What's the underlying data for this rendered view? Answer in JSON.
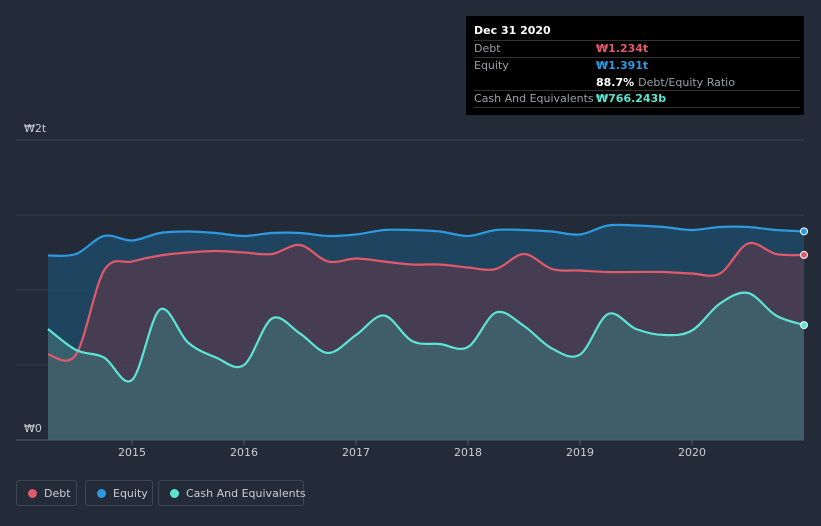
{
  "tooltip": {
    "date": "Dec 31 2020",
    "debt_label": "Debt",
    "debt_value": "₩1.234t",
    "equity_label": "Equity",
    "equity_value": "₩1.391t",
    "ratio_value": "88.7%",
    "ratio_label": "Debt/Equity Ratio",
    "cash_label": "Cash And Equivalents",
    "cash_value": "₩766.243b"
  },
  "legend": {
    "debt": "Debt",
    "equity": "Equity",
    "cash": "Cash And Equivalents"
  },
  "colors": {
    "debt": "#e05a6a",
    "equity": "#2d9ae0",
    "cash": "#5de4d4",
    "background": "#232b38"
  },
  "chart_data": {
    "type": "area",
    "title": "",
    "ylabel": "",
    "currency": "₩",
    "unit": "trillion",
    "y_tick_labels": [
      "₩0",
      "₩2t"
    ],
    "y_ticks": [
      0,
      2
    ],
    "ylim": [
      0,
      2
    ],
    "gridlines_at": [
      0.5,
      1.0,
      1.5,
      1.5
    ],
    "xlim": [
      2014.25,
      2021.0
    ],
    "x_tick_labels": [
      "2015",
      "2016",
      "2017",
      "2018",
      "2019",
      "2020"
    ],
    "x_ticks": [
      2015,
      2016,
      2017,
      2018,
      2019,
      2020
    ],
    "series": [
      {
        "name": "Equity",
        "key": "equity",
        "points": [
          [
            2014.25,
            1.23
          ],
          [
            2014.5,
            1.24
          ],
          [
            2014.75,
            1.36
          ],
          [
            2015.0,
            1.33
          ],
          [
            2015.25,
            1.38
          ],
          [
            2015.5,
            1.39
          ],
          [
            2015.75,
            1.38
          ],
          [
            2016.0,
            1.36
          ],
          [
            2016.25,
            1.38
          ],
          [
            2016.5,
            1.38
          ],
          [
            2016.75,
            1.36
          ],
          [
            2017.0,
            1.37
          ],
          [
            2017.25,
            1.4
          ],
          [
            2017.5,
            1.4
          ],
          [
            2017.75,
            1.39
          ],
          [
            2018.0,
            1.36
          ],
          [
            2018.25,
            1.4
          ],
          [
            2018.5,
            1.4
          ],
          [
            2018.75,
            1.39
          ],
          [
            2019.0,
            1.37
          ],
          [
            2019.25,
            1.43
          ],
          [
            2019.5,
            1.43
          ],
          [
            2019.75,
            1.42
          ],
          [
            2020.0,
            1.4
          ],
          [
            2020.25,
            1.42
          ],
          [
            2020.5,
            1.42
          ],
          [
            2020.75,
            1.4
          ],
          [
            2021.0,
            1.391
          ]
        ]
      },
      {
        "name": "Debt",
        "key": "debt",
        "points": [
          [
            2014.25,
            0.57
          ],
          [
            2014.5,
            0.57
          ],
          [
            2014.75,
            1.13
          ],
          [
            2015.0,
            1.19
          ],
          [
            2015.25,
            1.23
          ],
          [
            2015.5,
            1.25
          ],
          [
            2015.75,
            1.26
          ],
          [
            2016.0,
            1.25
          ],
          [
            2016.25,
            1.24
          ],
          [
            2016.5,
            1.3
          ],
          [
            2016.75,
            1.19
          ],
          [
            2017.0,
            1.21
          ],
          [
            2017.25,
            1.19
          ],
          [
            2017.5,
            1.17
          ],
          [
            2017.75,
            1.17
          ],
          [
            2018.0,
            1.15
          ],
          [
            2018.25,
            1.14
          ],
          [
            2018.5,
            1.24
          ],
          [
            2018.75,
            1.14
          ],
          [
            2019.0,
            1.13
          ],
          [
            2019.25,
            1.12
          ],
          [
            2019.5,
            1.12
          ],
          [
            2019.75,
            1.12
          ],
          [
            2020.0,
            1.11
          ],
          [
            2020.25,
            1.11
          ],
          [
            2020.5,
            1.31
          ],
          [
            2020.75,
            1.24
          ],
          [
            2021.0,
            1.234
          ]
        ]
      },
      {
        "name": "Cash And Equivalents",
        "key": "cash",
        "points": [
          [
            2014.25,
            0.74
          ],
          [
            2014.5,
            0.6
          ],
          [
            2014.75,
            0.55
          ],
          [
            2015.0,
            0.4
          ],
          [
            2015.25,
            0.87
          ],
          [
            2015.5,
            0.65
          ],
          [
            2015.75,
            0.55
          ],
          [
            2016.0,
            0.5
          ],
          [
            2016.25,
            0.81
          ],
          [
            2016.5,
            0.71
          ],
          [
            2016.75,
            0.58
          ],
          [
            2017.0,
            0.7
          ],
          [
            2017.25,
            0.83
          ],
          [
            2017.5,
            0.66
          ],
          [
            2017.75,
            0.64
          ],
          [
            2018.0,
            0.62
          ],
          [
            2018.25,
            0.85
          ],
          [
            2018.5,
            0.76
          ],
          [
            2018.75,
            0.61
          ],
          [
            2019.0,
            0.57
          ],
          [
            2019.25,
            0.84
          ],
          [
            2019.5,
            0.74
          ],
          [
            2019.75,
            0.7
          ],
          [
            2020.0,
            0.73
          ],
          [
            2020.25,
            0.91
          ],
          [
            2020.5,
            0.98
          ],
          [
            2020.75,
            0.83
          ],
          [
            2021.0,
            0.766
          ]
        ]
      }
    ]
  }
}
